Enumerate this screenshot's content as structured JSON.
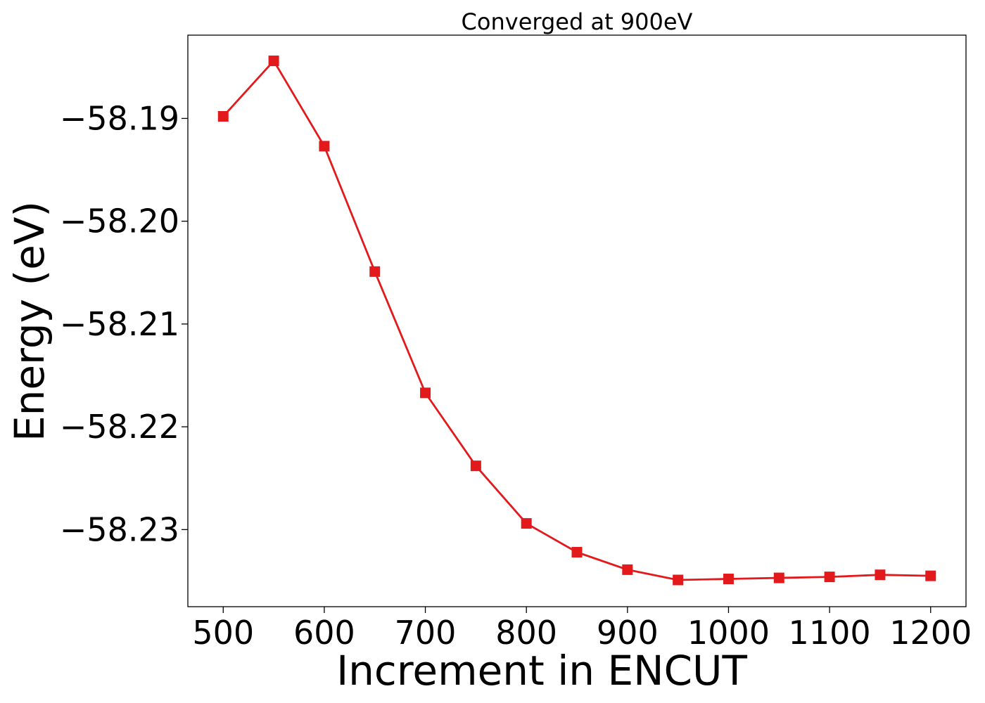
{
  "chart_data": {
    "type": "line",
    "title": "Converged at 900eV",
    "xlabel": "Increment in ENCUT",
    "ylabel": "Energy (eV)",
    "xlim": [
      465,
      1235
    ],
    "ylim": [
      -58.2375,
      -58.1819
    ],
    "xticks": [
      500,
      600,
      700,
      800,
      900,
      1000,
      1100,
      1200
    ],
    "xtick_labels": [
      "500",
      "600",
      "700",
      "800",
      "900",
      "1000",
      "1100",
      "1200"
    ],
    "yticks": [
      -58.19,
      -58.2,
      -58.21,
      -58.22,
      -58.23
    ],
    "ytick_labels": [
      "−58.19",
      "−58.20",
      "−58.21",
      "−58.22",
      "−58.23"
    ],
    "grid": false,
    "legend": "none",
    "series": [
      {
        "color": "#e31a1c",
        "marker": "square",
        "x": [
          500,
          550,
          600,
          650,
          700,
          750,
          800,
          850,
          900,
          950,
          1000,
          1050,
          1100,
          1150,
          1200
        ],
        "y": [
          -58.1898,
          -58.1844,
          -58.1927,
          -58.2049,
          -58.2167,
          -58.2238,
          -58.2294,
          -58.2322,
          -58.2339,
          -58.2349,
          -58.2348,
          -58.2347,
          -58.2346,
          -58.2344,
          -58.2345
        ]
      }
    ]
  }
}
